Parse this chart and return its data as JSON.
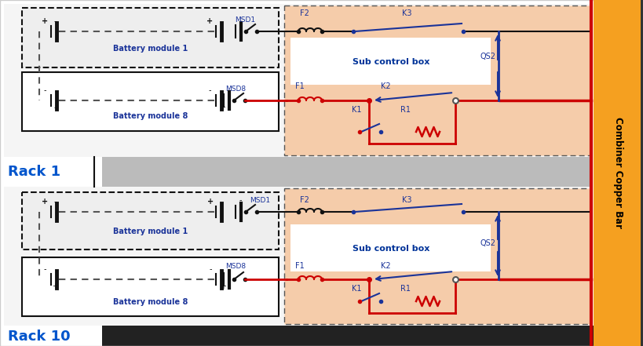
{
  "bg_white": "#ffffff",
  "bg_light": "#f0f0f0",
  "bg_gray": "#e0e0e0",
  "sub_box_bg": "#f5ccaa",
  "combiner_color": "#f5a020",
  "red_wire": "#cc0000",
  "blue_wire": "#1a3399",
  "dark_blue": "#003399",
  "black_wire": "#111111",
  "gray_wire": "#555555",
  "rack1_label": "Rack 1",
  "rack10_label": "Rack 10",
  "batt_mod1": "Battery module 1",
  "batt_mod8": "Battery module 8",
  "sub_ctrl": "Sub control box",
  "combiner_label": "Combiner Copper Bar",
  "label_color": "#1a3399",
  "rack_label_color": "#0055cc"
}
